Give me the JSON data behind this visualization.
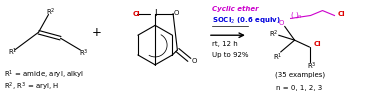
{
  "bg_color": "#ffffff",
  "fig_width": 3.78,
  "fig_height": 1.03,
  "dpi": 100,
  "reagent_line1": "Cyclic ether",
  "reagent_line1_color": "#cc00cc",
  "reagent_line2_color": "#0000dd",
  "reagent_line3": "rt, 12 h",
  "reagent_line4": "Up to 92%",
  "examples_label": "(35 examples)",
  "n_label": "n = 0, 1, 2, 3",
  "red_color": "#dd0000",
  "blue_color": "#0000dd",
  "purple_color": "#cc00cc",
  "black_color": "#000000"
}
